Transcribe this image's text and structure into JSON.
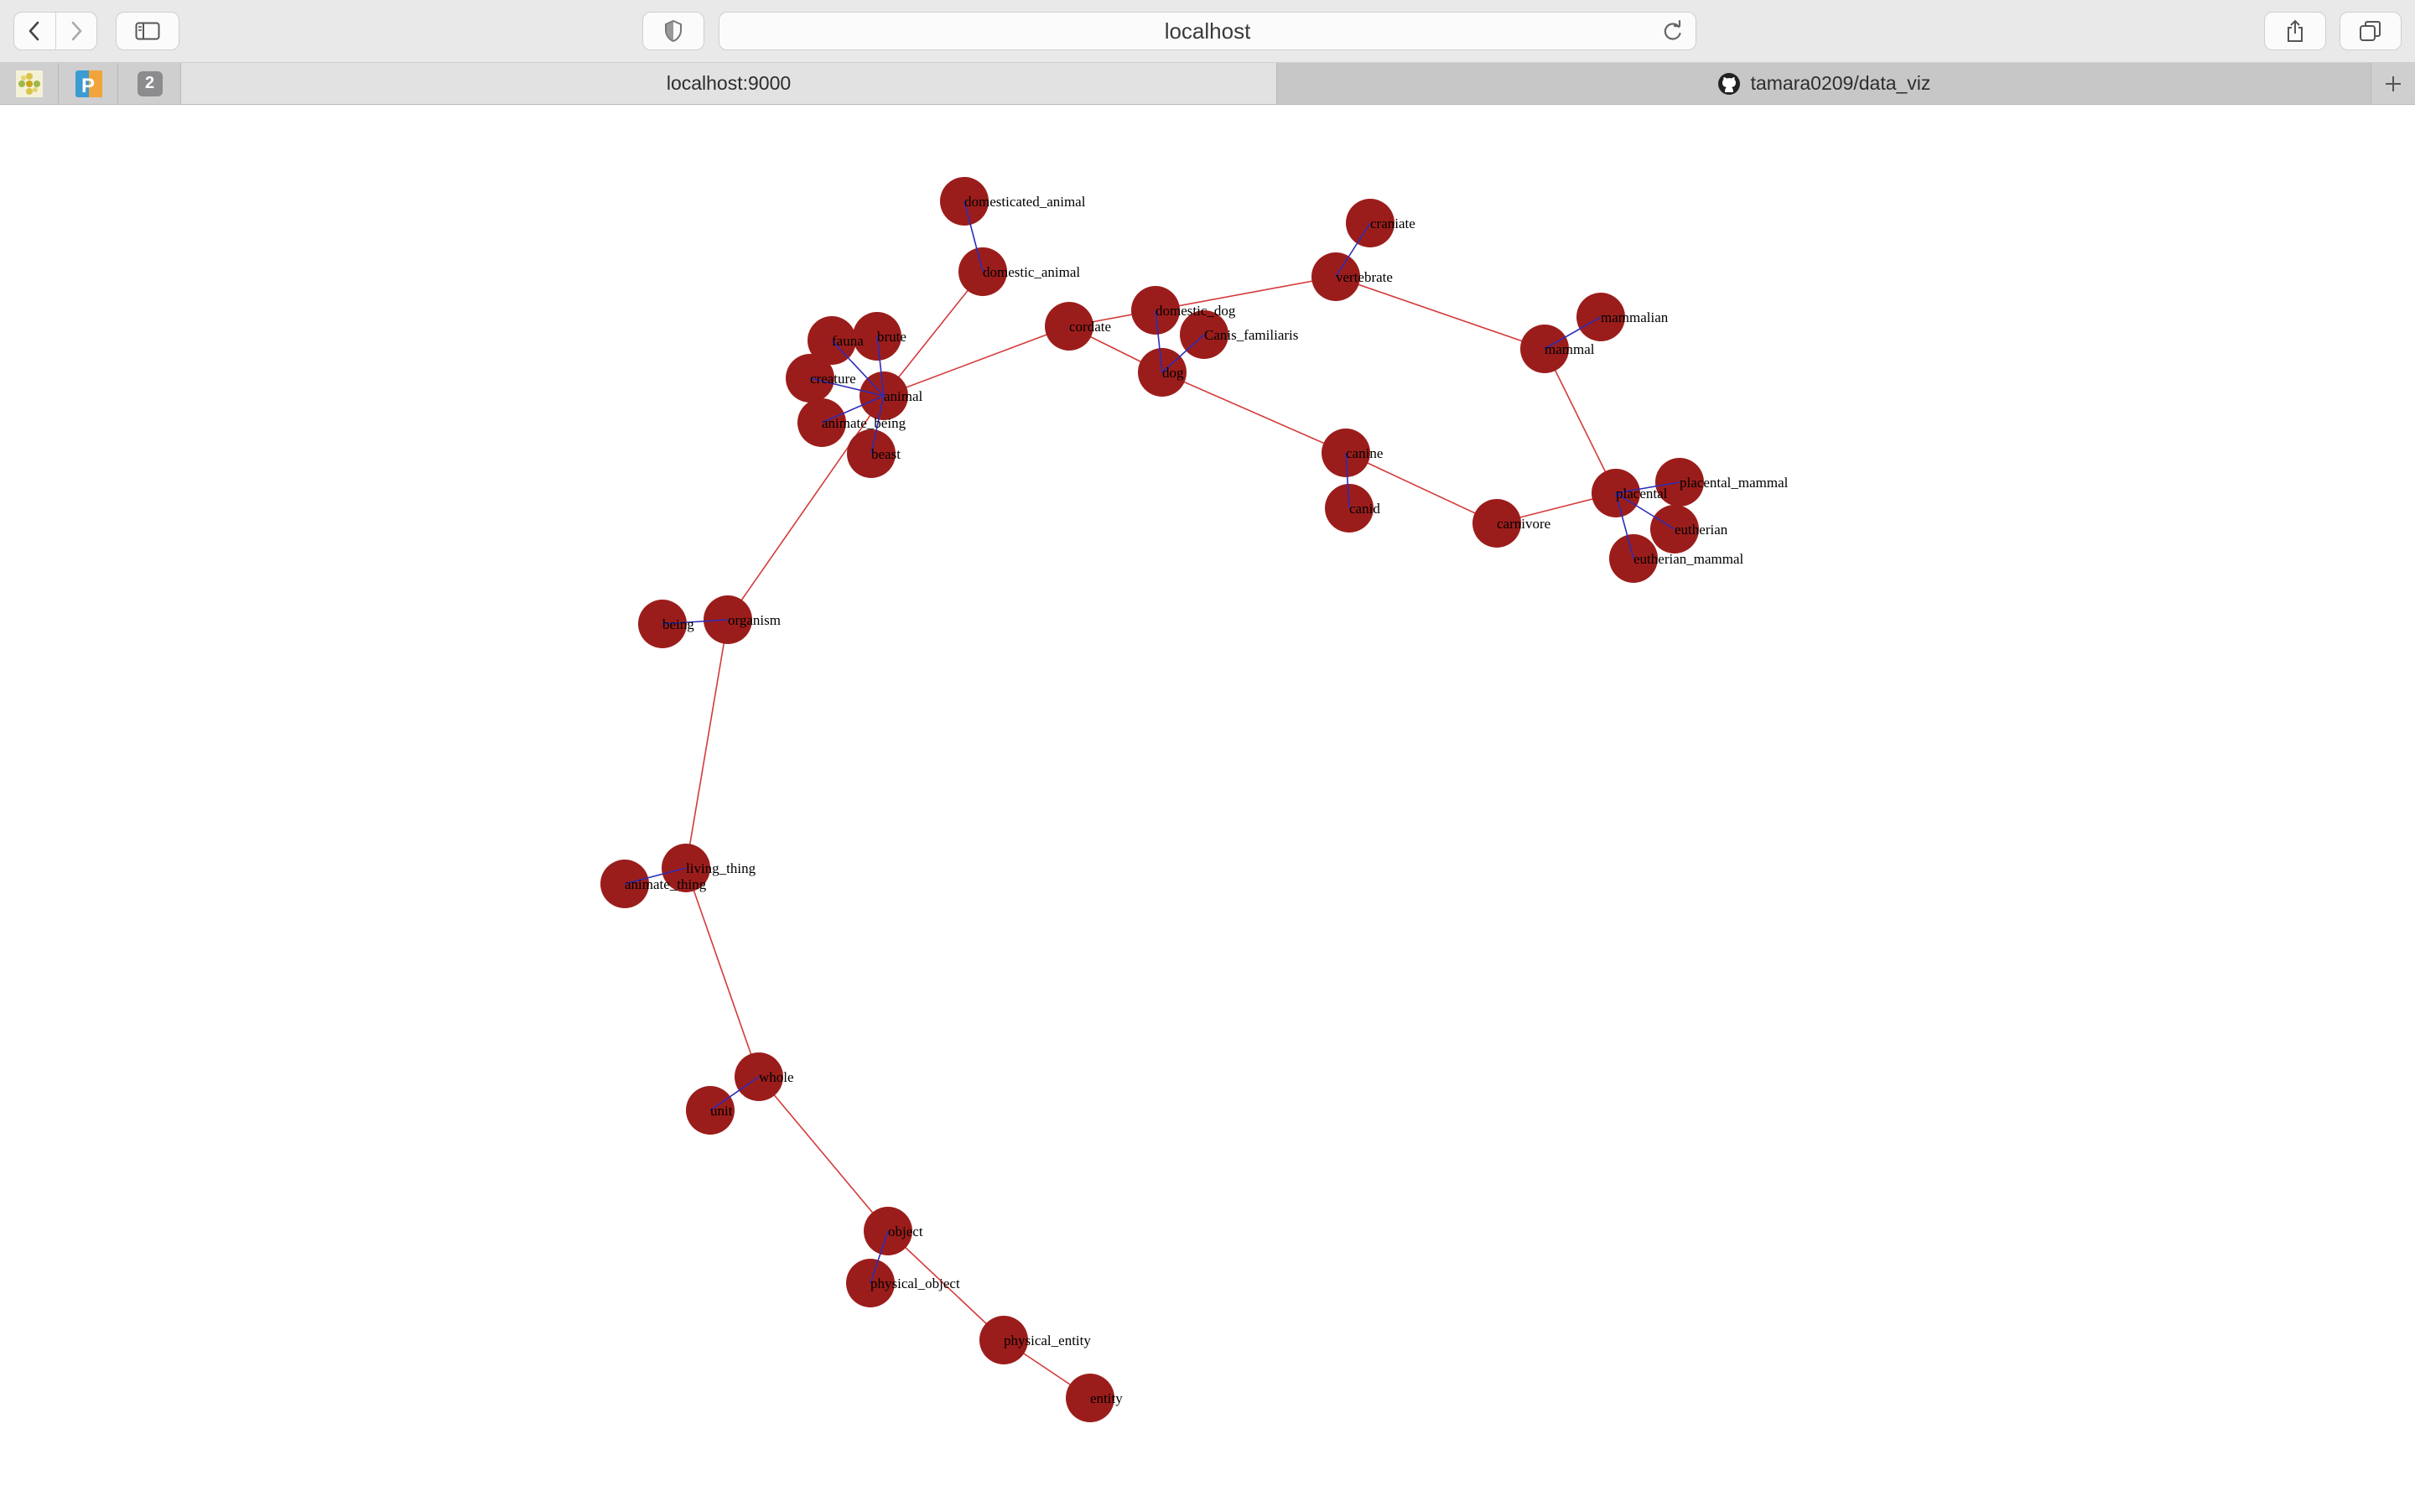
{
  "browser": {
    "address": "localhost",
    "tabs": [
      {
        "label": "localhost:9000",
        "active": true
      },
      {
        "label": "tamara0209/data_viz",
        "active": false,
        "icon": "github-icon"
      }
    ],
    "pinned_badge": "2",
    "pinned_icons": [
      "flower-icon",
      "p-app-icon",
      "badge-2-icon"
    ]
  },
  "graph": {
    "colors": {
      "node": "#9b1d1b",
      "hypernym_link": "#d43a3a",
      "synonym_link": "#2c2cb8"
    },
    "nodes": [
      {
        "id": "domesticated_animal",
        "label": "domesticated_animal"
      },
      {
        "id": "domestic_animal",
        "label": "domestic_animal"
      },
      {
        "id": "craniate",
        "label": "craniate"
      },
      {
        "id": "vertebrate",
        "label": "vertebrate"
      },
      {
        "id": "mammalian",
        "label": "mammalian"
      },
      {
        "id": "mammal",
        "label": "mammal"
      },
      {
        "id": "domestic_dog",
        "label": "domestic_dog"
      },
      {
        "id": "Canis_familiaris",
        "label": "Canis_familiaris"
      },
      {
        "id": "dog",
        "label": "dog"
      },
      {
        "id": "chordate",
        "label": "cordate"
      },
      {
        "id": "fauna",
        "label": "fauna"
      },
      {
        "id": "brute",
        "label": "brute"
      },
      {
        "id": "creature",
        "label": "creature"
      },
      {
        "id": "animal",
        "label": "animal"
      },
      {
        "id": "animate_being",
        "label": "animate_being"
      },
      {
        "id": "beast",
        "label": "beast"
      },
      {
        "id": "canine",
        "label": "canine"
      },
      {
        "id": "canid",
        "label": "canid"
      },
      {
        "id": "carnivore",
        "label": "carnivore"
      },
      {
        "id": "placental",
        "label": "placental"
      },
      {
        "id": "placental_mammal",
        "label": "placental_mammal"
      },
      {
        "id": "eutherian",
        "label": "eutherian"
      },
      {
        "id": "eutherian_mammal",
        "label": "eutherian_mammal"
      },
      {
        "id": "being",
        "label": "being"
      },
      {
        "id": "organism",
        "label": "organism"
      },
      {
        "id": "living_thing",
        "label": "living_thing"
      },
      {
        "id": "animate_thing",
        "label": "animate_thing"
      },
      {
        "id": "whole",
        "label": "whole"
      },
      {
        "id": "unit",
        "label": "unit"
      },
      {
        "id": "object",
        "label": "object"
      },
      {
        "id": "physical_object",
        "label": "physical_object"
      },
      {
        "id": "physical_entity",
        "label": "physical_entity"
      },
      {
        "id": "entity",
        "label": "entity"
      }
    ],
    "hypernym_links": [
      [
        "entity",
        "physical_entity"
      ],
      [
        "physical_entity",
        "object"
      ],
      [
        "object",
        "whole"
      ],
      [
        "whole",
        "living_thing"
      ],
      [
        "living_thing",
        "organism"
      ],
      [
        "organism",
        "animal"
      ],
      [
        "animal",
        "domestic_animal"
      ],
      [
        "animal",
        "chordate"
      ],
      [
        "chordate",
        "vertebrate"
      ],
      [
        "vertebrate",
        "mammal"
      ],
      [
        "mammal",
        "placental"
      ],
      [
        "placental",
        "carnivore"
      ],
      [
        "carnivore",
        "canine"
      ],
      [
        "canine",
        "dog"
      ],
      [
        "dog",
        "chordate"
      ]
    ],
    "synonym_links": [
      [
        "domesticated_animal",
        "domestic_animal"
      ],
      [
        "craniate",
        "vertebrate"
      ],
      [
        "mammalian",
        "mammal"
      ],
      [
        "domestic_dog",
        "dog"
      ],
      [
        "Canis_familiaris",
        "dog"
      ],
      [
        "fauna",
        "animal"
      ],
      [
        "brute",
        "animal"
      ],
      [
        "creature",
        "animal"
      ],
      [
        "animate_being",
        "animal"
      ],
      [
        "beast",
        "animal"
      ],
      [
        "canid",
        "canine"
      ],
      [
        "placental_mammal",
        "placental"
      ],
      [
        "eutherian",
        "placental"
      ],
      [
        "eutherian_mammal",
        "placental"
      ],
      [
        "being",
        "organism"
      ],
      [
        "animate_thing",
        "living_thing"
      ],
      [
        "unit",
        "whole"
      ],
      [
        "physical_object",
        "object"
      ]
    ]
  }
}
